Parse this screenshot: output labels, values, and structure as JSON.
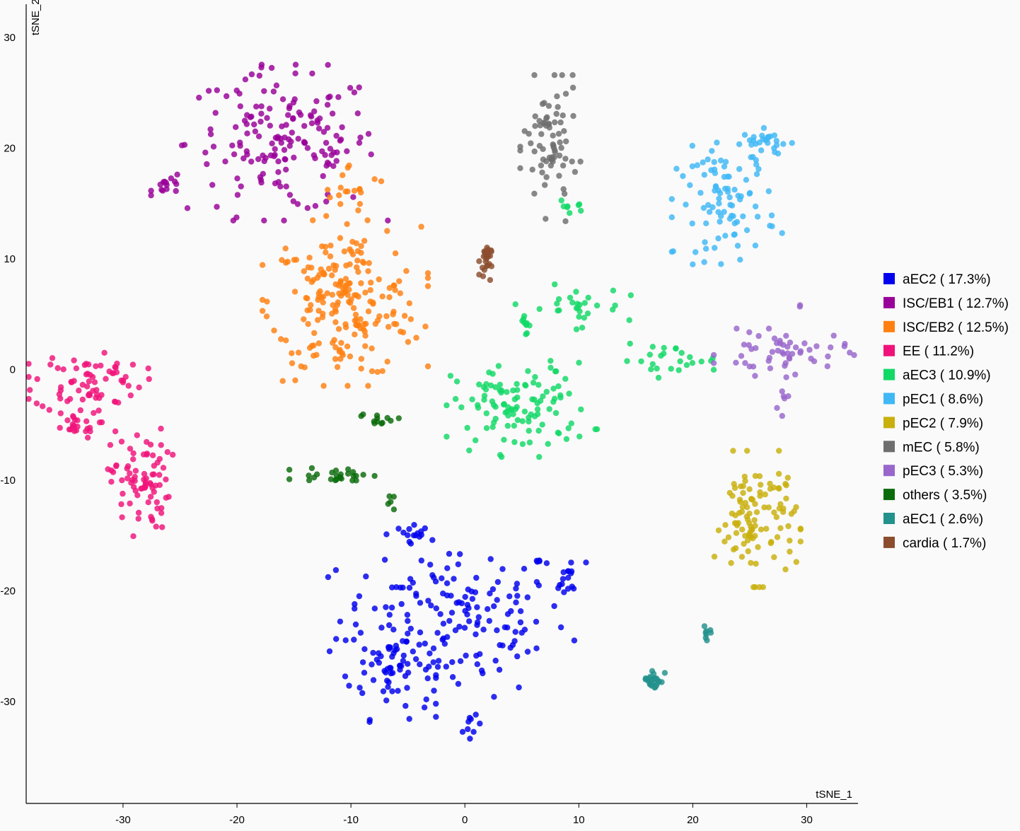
{
  "chart_data": {
    "type": "scatter",
    "xlabel": "tSNE_1",
    "ylabel": "tSNE_2",
    "xlim": [
      -38.5,
      34.5
    ],
    "ylim": [
      -39.2,
      33
    ],
    "x_ticks": [
      -30,
      -20,
      -10,
      0,
      10,
      20,
      30
    ],
    "y_ticks": [
      30,
      20,
      10,
      0,
      -10,
      -20,
      -30
    ],
    "legend_position": "right",
    "series": [
      {
        "name": "aEC2",
        "percent": "( 17.3%)",
        "color": "#0000ee",
        "clusters": [
          {
            "cx": -1,
            "cy": -22.5,
            "sx": 5,
            "sy": 3.5,
            "n": 170
          },
          {
            "cx": -6.5,
            "cy": -27,
            "sx": 1.8,
            "sy": 2.2,
            "n": 55
          },
          {
            "cx": 9.2,
            "cy": -19,
            "sx": 0.7,
            "sy": 0.9,
            "n": 16
          },
          {
            "cx": -4.5,
            "cy": -14.5,
            "sx": 0.6,
            "sy": 0.5,
            "n": 12
          },
          {
            "cx": 0.6,
            "cy": -32.5,
            "sx": 0.4,
            "sy": 0.6,
            "n": 9
          }
        ]
      },
      {
        "name": "ISC/EB1",
        "percent": "( 12.7%)",
        "color": "#990099",
        "clusters": [
          {
            "cx": -16,
            "cy": 20.5,
            "sx": 4.2,
            "sy": 3.2,
            "n": 170
          },
          {
            "cx": -26,
            "cy": 16.5,
            "sx": 0.7,
            "sy": 0.35,
            "n": 14
          }
        ]
      },
      {
        "name": "ISC/EB2",
        "percent": "( 12.5%)",
        "color": "#ff8011",
        "clusters": [
          {
            "cx": -10.5,
            "cy": 6,
            "sx": 3.3,
            "sy": 3.4,
            "n": 210
          },
          {
            "cx": -10,
            "cy": 16,
            "sx": 1.8,
            "sy": 1.3,
            "n": 20
          }
        ]
      },
      {
        "name": "EE",
        "percent": "( 11.2%)",
        "color": "#f0127a",
        "clusters": [
          {
            "cx": -33,
            "cy": -1,
            "sx": 2.4,
            "sy": 1.4,
            "n": 70
          },
          {
            "cx": -34.5,
            "cy": -5,
            "sx": 1.2,
            "sy": 0.6,
            "n": 25
          },
          {
            "cx": -28.5,
            "cy": -10,
            "sx": 1.3,
            "sy": 2.3,
            "n": 80
          }
        ]
      },
      {
        "name": "aEC3",
        "percent": "( 10.9%)",
        "color": "#11d966",
        "clusters": [
          {
            "cx": 5,
            "cy": -3.5,
            "sx": 3,
            "sy": 2,
            "n": 110
          },
          {
            "cx": 9.5,
            "cy": 5.5,
            "sx": 2.3,
            "sy": 1,
            "n": 28
          },
          {
            "cx": 5.3,
            "cy": 4.5,
            "sx": 0.4,
            "sy": 0.6,
            "n": 10
          },
          {
            "cx": 18,
            "cy": 0.8,
            "sx": 2.2,
            "sy": 0.7,
            "n": 25
          },
          {
            "cx": 9.5,
            "cy": 14.8,
            "sx": 0.6,
            "sy": 0.3,
            "n": 8
          }
        ]
      },
      {
        "name": "pEC1",
        "percent": "( 8.6%)",
        "color": "#3fb8f5",
        "clusters": [
          {
            "cx": 23,
            "cy": 15,
            "sx": 2.2,
            "sy": 2.5,
            "n": 90
          },
          {
            "cx": 26.5,
            "cy": 20.5,
            "sx": 1.1,
            "sy": 0.6,
            "n": 28
          }
        ]
      },
      {
        "name": "pEC2",
        "percent": "( 7.9%)",
        "color": "#c9b00c",
        "clusters": [
          {
            "cx": 25.5,
            "cy": -13.5,
            "sx": 1.8,
            "sy": 2.8,
            "n": 110
          }
        ]
      },
      {
        "name": "mEC",
        "percent": "( 5.8%)",
        "color": "#6e6e6e",
        "clusters": [
          {
            "cx": 7.5,
            "cy": 20,
            "sx": 1.2,
            "sy": 3,
            "n": 75
          }
        ]
      },
      {
        "name": "pEC3",
        "percent": "( 5.3%)",
        "color": "#9966cc",
        "clusters": [
          {
            "cx": 28,
            "cy": 1.5,
            "sx": 2.8,
            "sy": 1,
            "n": 55
          },
          {
            "cx": 27.5,
            "cy": -3,
            "sx": 0.4,
            "sy": 0.7,
            "n": 6
          },
          {
            "cx": 29.5,
            "cy": 5.7,
            "sx": 0.1,
            "sy": 0.1,
            "n": 2
          }
        ]
      },
      {
        "name": "others",
        "percent": "( 3.5%)",
        "color": "#0a6b0a",
        "clusters": [
          {
            "cx": -11,
            "cy": -9.5,
            "sx": 2,
            "sy": 0.35,
            "n": 26
          },
          {
            "cx": -7.5,
            "cy": -4.5,
            "sx": 0.9,
            "sy": 0.25,
            "n": 12
          },
          {
            "cx": -6.6,
            "cy": -12,
            "sx": 0.2,
            "sy": 0.35,
            "n": 5
          }
        ]
      },
      {
        "name": "aEC1",
        "percent": "( 2.6%)",
        "color": "#23918c",
        "clusters": [
          {
            "cx": 16.6,
            "cy": -28,
            "sx": 0.45,
            "sy": 0.5,
            "n": 26
          },
          {
            "cx": 21.2,
            "cy": -23.7,
            "sx": 0.3,
            "sy": 0.35,
            "n": 8
          }
        ]
      },
      {
        "name": "cardia",
        "percent": "( 1.7%)",
        "color": "#8b4d2d",
        "clusters": [
          {
            "cx": 1.8,
            "cy": 9.8,
            "sx": 0.25,
            "sy": 0.8,
            "n": 26
          }
        ]
      }
    ]
  }
}
